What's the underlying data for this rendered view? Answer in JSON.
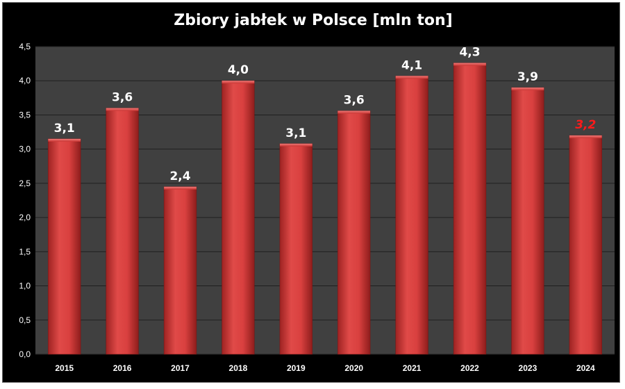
{
  "chart_data": {
    "type": "bar",
    "title": "Zbiory jabłek w Polsce [mln ton]",
    "categories": [
      "2015",
      "2016",
      "2017",
      "2018",
      "2019",
      "2020",
      "2021",
      "2022",
      "2023",
      "2024"
    ],
    "values": [
      3.15,
      3.6,
      2.45,
      4.0,
      3.08,
      3.56,
      4.07,
      4.26,
      3.9,
      3.2
    ],
    "data_labels": [
      "3,1",
      "3,6",
      "2,4",
      "4,0",
      "3,1",
      "3,6",
      "4,1",
      "4,3",
      "3,9",
      "3,2"
    ],
    "highlighted_index": 9,
    "ylim": [
      0,
      4.5
    ],
    "yticks": [
      "0,0",
      "0,5",
      "1,0",
      "1,5",
      "2,0",
      "2,5",
      "3,0",
      "3,5",
      "4,0",
      "4,5"
    ],
    "grid": true,
    "legend": "none",
    "colors": {
      "bar": "#d9403f",
      "bar_dark": "#8e1d1c",
      "plot_background": "#404040",
      "background": "#000000",
      "gridline": "#1f1f1f",
      "label": "#ffffff",
      "highlight_label": "#ff1a1a"
    }
  }
}
